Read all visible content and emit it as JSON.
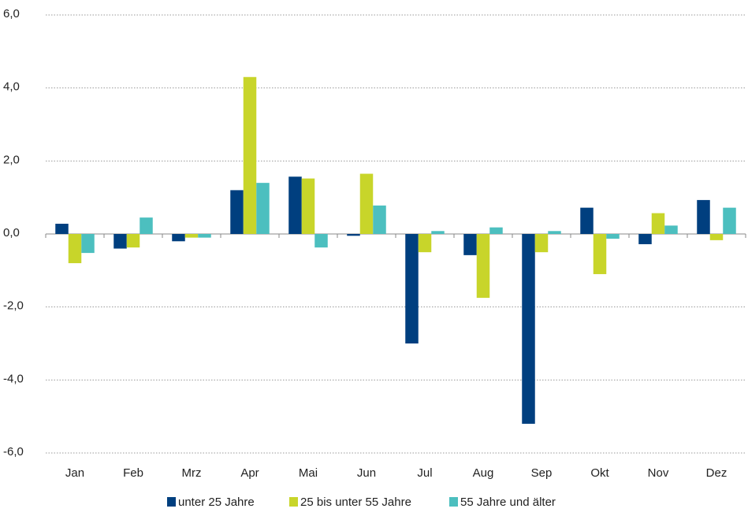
{
  "chart_data": {
    "type": "bar",
    "categories": [
      "Jan",
      "Feb",
      "Mrz",
      "Apr",
      "Mai",
      "Jun",
      "Jul",
      "Aug",
      "Sep",
      "Okt",
      "Nov",
      "Dez"
    ],
    "series": [
      {
        "name": "unter 25 Jahre",
        "color": "#003f7f",
        "values": [
          0.28,
          -0.4,
          -0.2,
          1.2,
          1.57,
          -0.05,
          -3.0,
          -0.58,
          -5.2,
          0.72,
          -0.28,
          0.93
        ]
      },
      {
        "name": "25 bis unter 55 Jahre",
        "color": "#c8d52a",
        "values": [
          -0.8,
          -0.37,
          -0.1,
          4.3,
          1.52,
          1.65,
          -0.5,
          -1.75,
          -0.5,
          -1.1,
          0.57,
          -0.17
        ]
      },
      {
        "name": "55 Jahre und älter",
        "color": "#4cbfbf",
        "values": [
          -0.52,
          0.45,
          -0.1,
          1.4,
          -0.37,
          0.78,
          0.08,
          0.18,
          0.08,
          -0.13,
          0.23,
          0.72
        ]
      }
    ],
    "ylim": [
      -6,
      6
    ],
    "yticks": [
      {
        "value": -6,
        "label": "-6,0"
      },
      {
        "value": -4,
        "label": "-4,0"
      },
      {
        "value": -2,
        "label": "-2,0"
      },
      {
        "value": 0,
        "label": "0,0"
      },
      {
        "value": 2,
        "label": "2,0"
      },
      {
        "value": 4,
        "label": "4,0"
      },
      {
        "value": 6,
        "label": "6,0"
      }
    ],
    "grid": true
  }
}
